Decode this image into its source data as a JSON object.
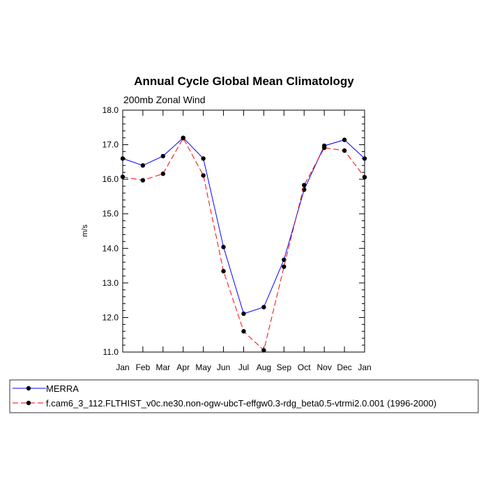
{
  "chart_data": {
    "type": "line",
    "title": "Annual Cycle Global Mean Climatology",
    "subtitle": "200mb Zonal Wind",
    "xlabel": "",
    "ylabel": "m/s",
    "categories": [
      "Jan",
      "Feb",
      "Mar",
      "Apr",
      "May",
      "Jun",
      "Jul",
      "Aug",
      "Sep",
      "Oct",
      "Nov",
      "Dec",
      "Jan"
    ],
    "ylim": [
      11.0,
      18.0
    ],
    "y_ticks": [
      "11.0",
      "12.0",
      "13.0",
      "14.0",
      "15.0",
      "16.0",
      "17.0",
      "18.0"
    ],
    "grid": false,
    "legend_position": "bottom",
    "series": [
      {
        "name": "MERRA",
        "color": "#0000ff",
        "dash": "solid",
        "values": [
          16.6,
          16.4,
          16.67,
          17.2,
          16.6,
          14.04,
          12.11,
          12.3,
          13.67,
          15.7,
          16.97,
          17.14,
          16.6
        ]
      },
      {
        "name": "f.cam6_3_112.FLTHIST_v0c.ne30.non-ogw-ubcT-effgw0.3-rdg_beta0.5-vtrmi2.0.001 (1996-2000)",
        "color": "#ff0000",
        "dash": "dashed",
        "values": [
          16.07,
          15.97,
          16.16,
          17.19,
          16.11,
          13.34,
          11.6,
          11.05,
          13.47,
          15.83,
          16.91,
          16.83,
          16.06
        ]
      }
    ]
  }
}
